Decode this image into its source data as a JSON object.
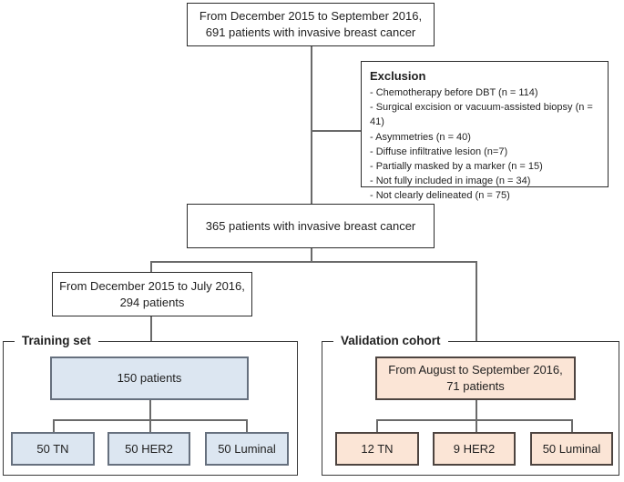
{
  "flowchart": {
    "top_box": {
      "line1": "From December 2015 to September 2016,",
      "line2": "691 patients with invasive breast cancer"
    },
    "exclusion_box": {
      "title": "Exclusion",
      "items": [
        "- Chemotherapy before DBT (n = 114)",
        "- Surgical excision or vacuum-assisted biopsy (n = 41)",
        "- Asymmetries (n = 40)",
        "- Diffuse infiltrative lesion (n=7)",
        "- Partially masked by a marker (n = 15)",
        "- Not fully included in image (n = 34)",
        "- Not clearly delineated (n = 75)"
      ]
    },
    "eligible_box": {
      "text": "365 patients with invasive breast cancer"
    },
    "period_box": {
      "line1": "From December 2015 to July 2016,",
      "line2": "294 patients"
    },
    "training": {
      "label": "Training set",
      "main_box": "150 patients",
      "sub_boxes": [
        "50 TN",
        "50 HER2",
        "50 Luminal"
      ]
    },
    "validation": {
      "label": "Validation cohort",
      "main_box_line1": "From August to September 2016,",
      "main_box_line2": "71 patients",
      "sub_boxes": [
        "12 TN",
        "9 HER2",
        "50 Luminal"
      ]
    },
    "colors": {
      "training_fill": "#dce6f1",
      "training_border": "#66707e",
      "validation_fill": "#fbe5d6",
      "validation_border": "#4d4440",
      "connector": "#6a6a6a",
      "box_border": "#2b2b2b"
    }
  }
}
